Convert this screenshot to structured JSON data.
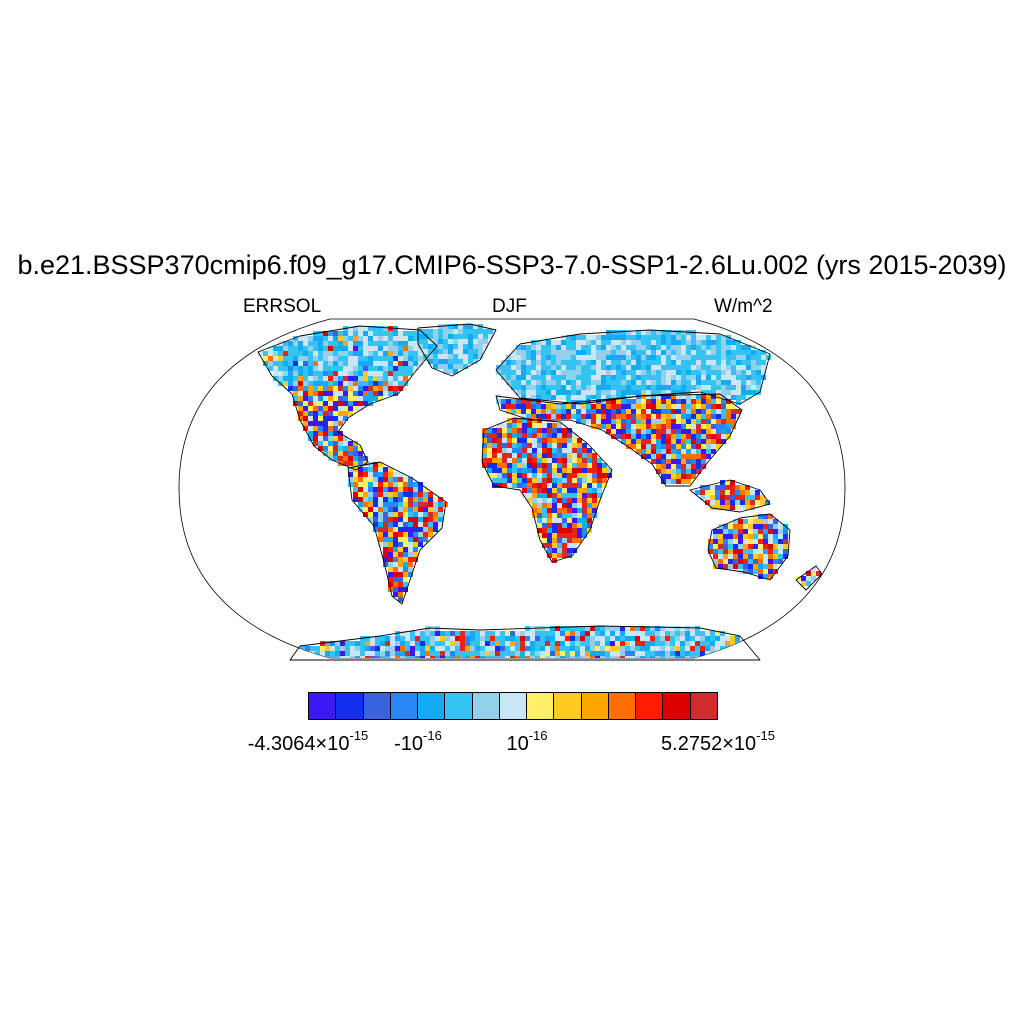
{
  "title": "b.e21.BSSP370cmip6.f09_g17.CMIP6-SSP3-7.0-SSP1-2.6Lu.002 (yrs 2015-2039)",
  "left_label": "ERRSOL",
  "center_label": "DJF",
  "right_label": "W/m^2",
  "projection": "Robinson",
  "colorbar": {
    "colors": [
      "#3b18f6",
      "#1330f0",
      "#3a62df",
      "#2a86f4",
      "#14aaf6",
      "#34c3f3",
      "#93d0ec",
      "#c9e6f5",
      "#fff065",
      "#ffcb20",
      "#ffa500",
      "#ff6e00",
      "#ff1c00",
      "#dd0000",
      "#d22b2b"
    ],
    "labels": [
      {
        "mantissa": "-4.3064×10",
        "exponent": "-15"
      },
      {
        "mantissa": "-10",
        "exponent": "-16"
      },
      {
        "mantissa": "10",
        "exponent": "-16"
      },
      {
        "mantissa": "5.2752×10",
        "exponent": "-15"
      }
    ]
  },
  "map_colors": {
    "land_cold": [
      "#34c3f3",
      "#34c3f3",
      "#14aaf6",
      "#93d0ec",
      "#c9e6f5"
    ],
    "land_mixed": [
      "#3b18f6",
      "#1330f0",
      "#3a62df",
      "#2a86f4",
      "#14aaf6",
      "#34c3f3",
      "#93d0ec",
      "#c9e6f5",
      "#fff065",
      "#ffcb20",
      "#ffa500",
      "#ff6e00",
      "#ff1c00",
      "#dd0000",
      "#d22b2b"
    ],
    "ocean": "#ffffff",
    "coastline": "#000000"
  }
}
